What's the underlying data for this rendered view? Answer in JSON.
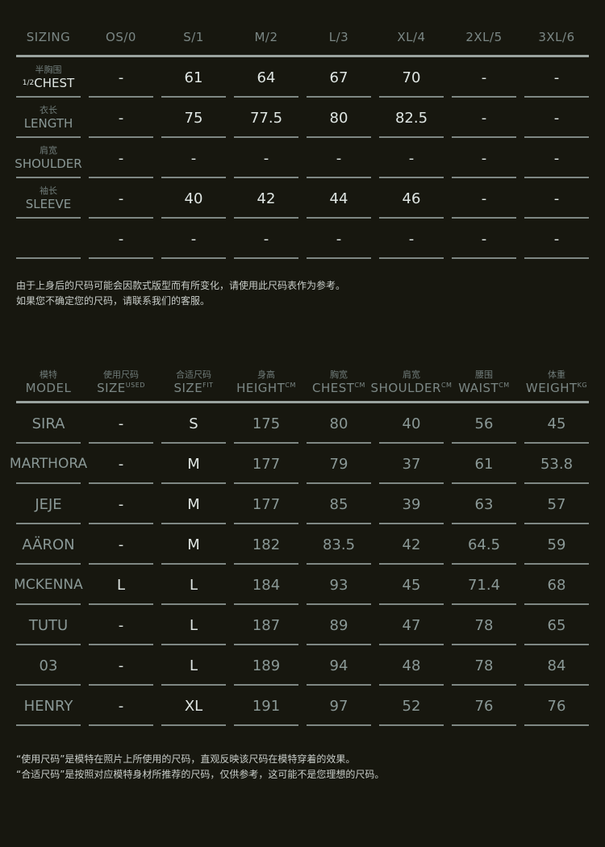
{
  "size_chart": {
    "header": [
      "SIZING",
      "OS/0",
      "S/1",
      "M/2",
      "L/3",
      "XL/4",
      "2XL/5",
      "3XL/6"
    ],
    "rows": [
      {
        "cn": "半胸围",
        "prefix": "1/2",
        "en": "CHEST",
        "values": [
          "-",
          "61",
          "64",
          "67",
          "70",
          "-",
          "-"
        ]
      },
      {
        "cn": "衣长",
        "prefix": "",
        "en": "LENGTH",
        "values": [
          "-",
          "75",
          "77.5",
          "80",
          "82.5",
          "-",
          "-"
        ]
      },
      {
        "cn": "肩宽",
        "prefix": "",
        "en": "SHOULDER",
        "values": [
          "-",
          "-",
          "-",
          "-",
          "-",
          "-",
          "-"
        ]
      },
      {
        "cn": "袖长",
        "prefix": "",
        "en": "SLEEVE",
        "values": [
          "-",
          "40",
          "42",
          "44",
          "46",
          "-",
          "-"
        ]
      },
      {
        "cn": "",
        "prefix": "",
        "en": "",
        "values": [
          "-",
          "-",
          "-",
          "-",
          "-",
          "-",
          "-"
        ]
      }
    ]
  },
  "size_note": [
    "由于上身后的尺码可能会因款式版型而有所变化，请使用此尺码表作为参考。",
    "如果您不确定您的尺码，请联系我们的客服。"
  ],
  "model_chart": {
    "header": [
      {
        "cn": "模特",
        "en": "MODEL",
        "sup": ""
      },
      {
        "cn": "使用尺码",
        "en": "SIZE",
        "sup": "USED"
      },
      {
        "cn": "合适尺码",
        "en": "SIZE",
        "sup": "FIT"
      },
      {
        "cn": "身高",
        "en": "HEIGHT",
        "sup": "CM"
      },
      {
        "cn": "胸宽",
        "en": "CHEST",
        "sup": "CM"
      },
      {
        "cn": "肩宽",
        "en": "SHOULDER",
        "sup": "CM"
      },
      {
        "cn": "腰围",
        "en": "WAIST",
        "sup": "CM"
      },
      {
        "cn": "体重",
        "en": "WEIGHT",
        "sup": "KG"
      }
    ],
    "rows": [
      [
        "SIRA",
        "-",
        "S",
        "175",
        "80",
        "40",
        "56",
        "45"
      ],
      [
        "MARTHORA",
        "-",
        "M",
        "177",
        "79",
        "37",
        "61",
        "53.8"
      ],
      [
        "JEJE",
        "-",
        "M",
        "177",
        "85",
        "39",
        "63",
        "57"
      ],
      [
        "AÄRON",
        "-",
        "M",
        "182",
        "83.5",
        "42",
        "64.5",
        "59"
      ],
      [
        "MCKENNA",
        "L",
        "L",
        "184",
        "93",
        "45",
        "71.4",
        "68"
      ],
      [
        "TUTU",
        "-",
        "L",
        "187",
        "89",
        "47",
        "78",
        "65"
      ],
      [
        "03",
        "-",
        "L",
        "189",
        "94",
        "48",
        "78",
        "84"
      ],
      [
        "HENRY",
        "-",
        "XL",
        "191",
        "97",
        "52",
        "76",
        "76"
      ]
    ]
  },
  "model_note": [
    "“使用尺码”是模特在照片上所使用的尺码，直观反映该尺码在模特穿着的效果。",
    "“合适尺码”是按照对应模特身材所推荐的尺码，仅供参考，这可能不是您理想的尺码。"
  ]
}
